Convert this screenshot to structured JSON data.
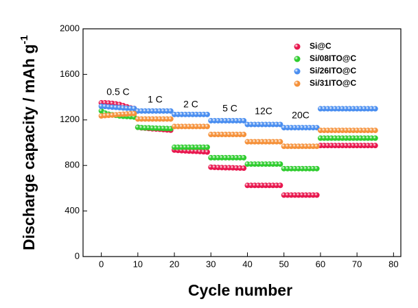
{
  "chart_data": {
    "type": "scatter",
    "x_label": "Cycle number",
    "y_label": "Discharge capacity / mAh g",
    "y_label_sup": "-1",
    "xlim": [
      -5,
      82
    ],
    "ylim": [
      0,
      2000
    ],
    "xticks": [
      0,
      10,
      20,
      30,
      40,
      50,
      60,
      70,
      80
    ],
    "yticks": [
      0,
      400,
      800,
      1200,
      1600,
      2000
    ],
    "legend": "upper right",
    "annotations": [
      "0.5 C",
      "1 C",
      "2 C",
      "5 C",
      "12C",
      "20C"
    ],
    "x": [
      0,
      1,
      2,
      3,
      4,
      5,
      6,
      7,
      8,
      9,
      10,
      11,
      12,
      13,
      14,
      15,
      16,
      17,
      18,
      19,
      20,
      21,
      22,
      23,
      24,
      25,
      26,
      27,
      28,
      29,
      30,
      31,
      32,
      33,
      34,
      35,
      36,
      37,
      38,
      39,
      40,
      41,
      42,
      43,
      44,
      45,
      46,
      47,
      48,
      49,
      50,
      51,
      52,
      53,
      54,
      55,
      56,
      57,
      58,
      59,
      60,
      61,
      62,
      63,
      64,
      65,
      66,
      67,
      68,
      69,
      70,
      71,
      72,
      73,
      74,
      75
    ],
    "series": [
      {
        "name": "Si@C",
        "color": "#e8174e",
        "values": [
          1350,
          1350,
          1348,
          1345,
          1340,
          1335,
          1325,
          1315,
          1305,
          1300,
          1135,
          1130,
          1128,
          1125,
          1122,
          1120,
          1118,
          1115,
          1112,
          1110,
          935,
          932,
          930,
          928,
          926,
          925,
          924,
          922,
          920,
          918,
          785,
          783,
          782,
          781,
          780,
          780,
          779,
          778,
          777,
          776,
          625,
          625,
          625,
          625,
          625,
          625,
          625,
          625,
          625,
          625,
          540,
          540,
          540,
          540,
          540,
          540,
          540,
          540,
          540,
          540,
          975,
          975,
          975,
          975,
          975,
          975,
          975,
          975,
          975,
          975,
          975,
          975,
          975,
          975,
          975,
          975
        ]
      },
      {
        "name": "Si/08ITO@C",
        "color": "#2ecc2e",
        "values": [
          1280,
          1260,
          1250,
          1245,
          1240,
          1235,
          1232,
          1230,
          1228,
          1225,
          1135,
          1132,
          1130,
          1130,
          1128,
          1127,
          1126,
          1125,
          1124,
          1123,
          960,
          960,
          960,
          960,
          960,
          960,
          960,
          960,
          960,
          960,
          868,
          868,
          868,
          868,
          868,
          868,
          868,
          868,
          868,
          868,
          812,
          812,
          812,
          812,
          812,
          812,
          812,
          812,
          812,
          812,
          772,
          772,
          772,
          772,
          772,
          772,
          772,
          772,
          772,
          772,
          1040,
          1040,
          1040,
          1040,
          1040,
          1040,
          1040,
          1040,
          1040,
          1040,
          1040,
          1040,
          1040,
          1040,
          1040,
          1040
        ]
      },
      {
        "name": "Si/26ITO@C",
        "color": "#4a8ef0",
        "values": [
          1320,
          1318,
          1315,
          1312,
          1310,
          1308,
          1305,
          1303,
          1302,
          1300,
          1278,
          1278,
          1278,
          1278,
          1278,
          1278,
          1278,
          1278,
          1278,
          1278,
          1248,
          1248,
          1248,
          1248,
          1248,
          1248,
          1248,
          1248,
          1248,
          1248,
          1193,
          1193,
          1193,
          1193,
          1193,
          1193,
          1193,
          1193,
          1193,
          1193,
          1160,
          1160,
          1160,
          1160,
          1160,
          1160,
          1160,
          1160,
          1160,
          1160,
          1132,
          1132,
          1132,
          1132,
          1132,
          1132,
          1132,
          1132,
          1132,
          1132,
          1298,
          1298,
          1298,
          1298,
          1298,
          1298,
          1298,
          1298,
          1298,
          1298,
          1298,
          1298,
          1298,
          1298,
          1298,
          1298
        ]
      },
      {
        "name": "Si/31ITO@C",
        "color": "#f5913a",
        "values": [
          1235,
          1238,
          1240,
          1242,
          1245,
          1248,
          1250,
          1252,
          1255,
          1255,
          1208,
          1208,
          1208,
          1208,
          1208,
          1208,
          1208,
          1208,
          1208,
          1208,
          1142,
          1142,
          1142,
          1142,
          1142,
          1142,
          1142,
          1142,
          1142,
          1142,
          1072,
          1072,
          1072,
          1072,
          1072,
          1072,
          1072,
          1072,
          1072,
          1072,
          1008,
          1008,
          1008,
          1008,
          1008,
          1008,
          1008,
          1008,
          1008,
          1008,
          968,
          968,
          968,
          968,
          968,
          968,
          968,
          968,
          968,
          968,
          1108,
          1108,
          1108,
          1108,
          1108,
          1108,
          1108,
          1108,
          1108,
          1108,
          1108,
          1108,
          1108,
          1108,
          1108,
          1108
        ]
      }
    ]
  }
}
